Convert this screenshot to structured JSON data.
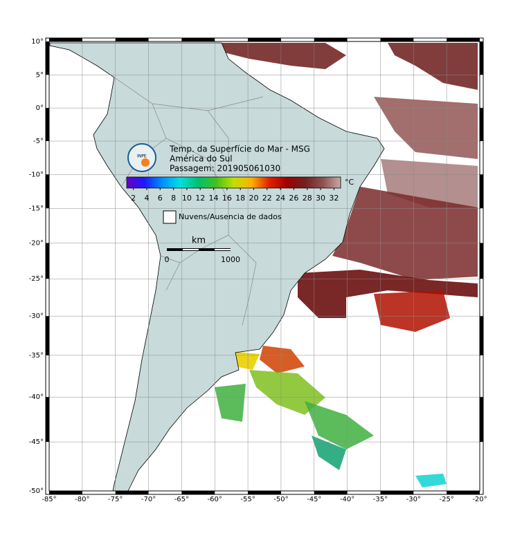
{
  "title_lines": [
    "Temp. da Superfície do Mar - MSG",
    "América do Sul",
    "Passagem: 201905061030"
  ],
  "logo_text": "INPE",
  "colorbar": {
    "unit": "°C",
    "range": [
      1,
      33
    ],
    "ticks": [
      2,
      4,
      6,
      8,
      10,
      12,
      14,
      16,
      18,
      20,
      22,
      24,
      26,
      28,
      30,
      32
    ],
    "colors": [
      "#6a00c8",
      "#1a1aff",
      "#0090ff",
      "#00e0e0",
      "#00c070",
      "#40c020",
      "#c0e000",
      "#ffb000",
      "#e02000",
      "#a00000",
      "#702020",
      "#905050",
      "#c8a8a8"
    ]
  },
  "legend": {
    "no_data": "Nuvens/Ausencia de dados"
  },
  "scale_bar": {
    "unit": "km",
    "ticks": [
      0,
      1000
    ]
  },
  "map": {
    "xlim": [
      -85,
      -20
    ],
    "ylim": [
      -50,
      10
    ],
    "xticks": [
      {
        "value": -85,
        "label": "-85°"
      },
      {
        "value": -80,
        "label": "-80°"
      },
      {
        "value": -75,
        "label": "-75°"
      },
      {
        "value": -70,
        "label": "-70°"
      },
      {
        "value": -65,
        "label": "-65°"
      },
      {
        "value": -60,
        "label": "-60°"
      },
      {
        "value": -55,
        "label": "-55°"
      },
      {
        "value": -50,
        "label": "-50°"
      },
      {
        "value": -45,
        "label": "-45°"
      },
      {
        "value": -40,
        "label": "-40°"
      },
      {
        "value": -35,
        "label": "-35°"
      },
      {
        "value": -30,
        "label": "-30°"
      },
      {
        "value": -25,
        "label": "-25°"
      },
      {
        "value": -20,
        "label": "-20°"
      }
    ],
    "yticks": [
      {
        "value": 10,
        "label": "10°"
      },
      {
        "value": 5,
        "label": "5°"
      },
      {
        "value": 0,
        "label": "0°"
      },
      {
        "value": -5,
        "label": "-5°"
      },
      {
        "value": -10,
        "label": "-10°"
      },
      {
        "value": -15,
        "label": "-15°"
      },
      {
        "value": -20,
        "label": "-20°"
      },
      {
        "value": -25,
        "label": "-25°"
      },
      {
        "value": -30,
        "label": "-30°"
      },
      {
        "value": -35,
        "label": "-35°"
      },
      {
        "value": -40,
        "label": "-40°"
      },
      {
        "value": -45,
        "label": "-45°"
      },
      {
        "value": -50,
        "label": "-50°"
      }
    ]
  }
}
